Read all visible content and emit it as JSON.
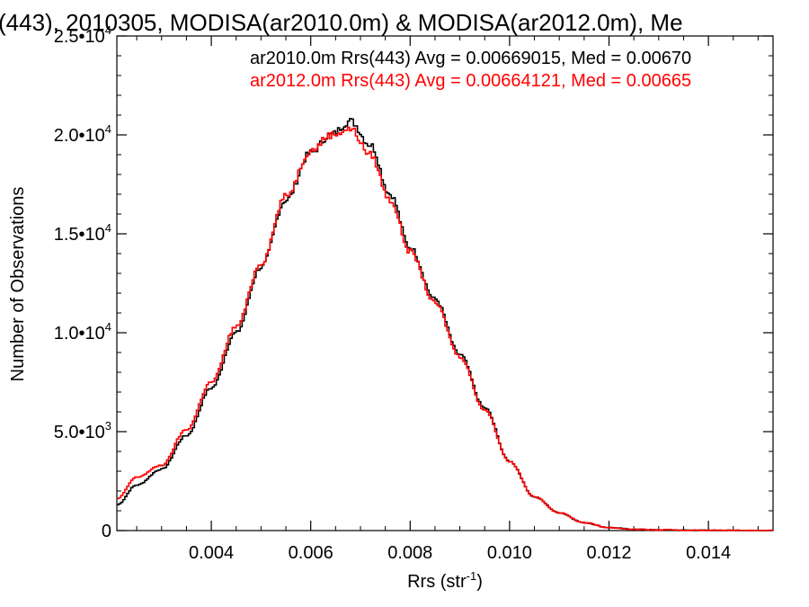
{
  "chart_data": {
    "type": "line",
    "title": "(443), 2010305, MODISA(ar2010.0m) & MODISA(ar2012.0m), Me",
    "xlabel_main": "Rrs (str",
    "xlabel_sup": "-1",
    "xlabel_close": ")",
    "ylabel": "Number of Observations",
    "xlim": [
      0.0021,
      0.0153
    ],
    "ylim": [
      0,
      25000
    ],
    "x_ticks": [
      {
        "value": 0.004,
        "label": "0.004"
      },
      {
        "value": 0.006,
        "label": "0.006"
      },
      {
        "value": 0.008,
        "label": "0.008"
      },
      {
        "value": 0.01,
        "label": "0.010"
      },
      {
        "value": 0.012,
        "label": "0.012"
      },
      {
        "value": 0.014,
        "label": "0.014"
      }
    ],
    "y_ticks": [
      {
        "value": 0,
        "mant": "0",
        "exp": ""
      },
      {
        "value": 5000,
        "mant": "5.0•10",
        "exp": "3"
      },
      {
        "value": 10000,
        "mant": "1.0•10",
        "exp": "4"
      },
      {
        "value": 15000,
        "mant": "1.5•10",
        "exp": "4"
      },
      {
        "value": 20000,
        "mant": "2.0•10",
        "exp": "4"
      },
      {
        "value": 25000,
        "mant": "2.5•10",
        "exp": "4"
      }
    ],
    "grid": false,
    "series": [
      {
        "name": "ar2010.0m",
        "color": "#000000",
        "legend": "ar2010.0m Rrs(443) Avg = 0.00669015, Med = 0.00670",
        "x": [
          0.0021,
          0.0025,
          0.003,
          0.0035,
          0.004,
          0.0045,
          0.005,
          0.0055,
          0.006,
          0.0064,
          0.0068,
          0.0072,
          0.0076,
          0.008,
          0.0085,
          0.009,
          0.0095,
          0.01,
          0.0105,
          0.011,
          0.0115,
          0.012,
          0.0125,
          0.013,
          0.014,
          0.0153
        ],
        "y": [
          1300,
          2300,
          3100,
          4800,
          7200,
          10000,
          13300,
          16700,
          19100,
          20000,
          20700,
          19500,
          17000,
          14300,
          11700,
          8900,
          6200,
          3500,
          1700,
          900,
          400,
          150,
          60,
          30,
          10,
          0
        ]
      },
      {
        "name": "ar2012.0m",
        "color": "#ff0000",
        "legend": "ar2012.0m Rrs(443) Avg = 0.00664121, Med = 0.00665",
        "x": [
          0.0021,
          0.0025,
          0.003,
          0.0035,
          0.004,
          0.0045,
          0.005,
          0.0055,
          0.006,
          0.0064,
          0.0068,
          0.0072,
          0.0076,
          0.008,
          0.0085,
          0.009,
          0.0095,
          0.01,
          0.0105,
          0.011,
          0.0115,
          0.012,
          0.0125,
          0.013,
          0.014,
          0.0153
        ],
        "y": [
          1600,
          2700,
          3300,
          5100,
          7500,
          10300,
          13500,
          16900,
          19200,
          20000,
          20300,
          19000,
          16700,
          14100,
          11500,
          8800,
          6100,
          3500,
          1700,
          900,
          400,
          150,
          60,
          30,
          10,
          0
        ]
      }
    ]
  }
}
